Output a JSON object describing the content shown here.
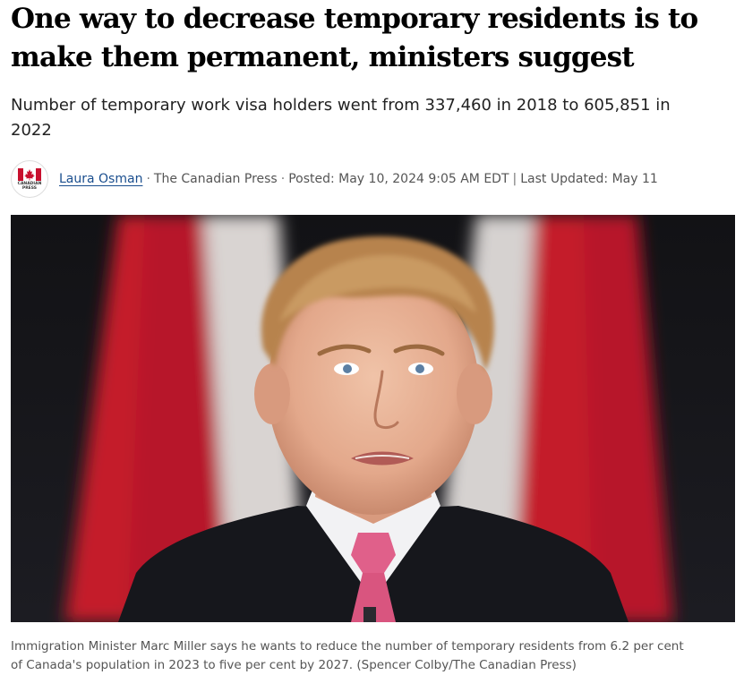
{
  "article": {
    "headline_line1": "One way to decrease temporary residents is to",
    "headline_line2": "make them permanent, ministers suggest",
    "deck_line1": "Number of temporary work visa holders went from 337,460 in 2018 to 605,851 in",
    "deck_line2": "2022",
    "byline": {
      "logo_text_line1": "CANADIAN",
      "logo_text_line2": "PRESS",
      "author": "Laura Osman",
      "separator": "·",
      "source": "The Canadian Press",
      "posted": "Posted: May 10, 2024 9:05 AM EDT",
      "divider": "|",
      "updated": "Last Updated: May 11"
    },
    "photo": {
      "icon": "news-photo"
    },
    "caption_line1": "Immigration Minister Marc Miller says he wants to reduce the number of temporary residents from 6.2 per cent",
    "caption_line2": "of Canada's population in 2023 to five per cent by 2027. (Spencer Colby/The Canadian Press)"
  },
  "colors": {
    "link": "#1a4e8e",
    "flag_red": "#c8102e"
  }
}
